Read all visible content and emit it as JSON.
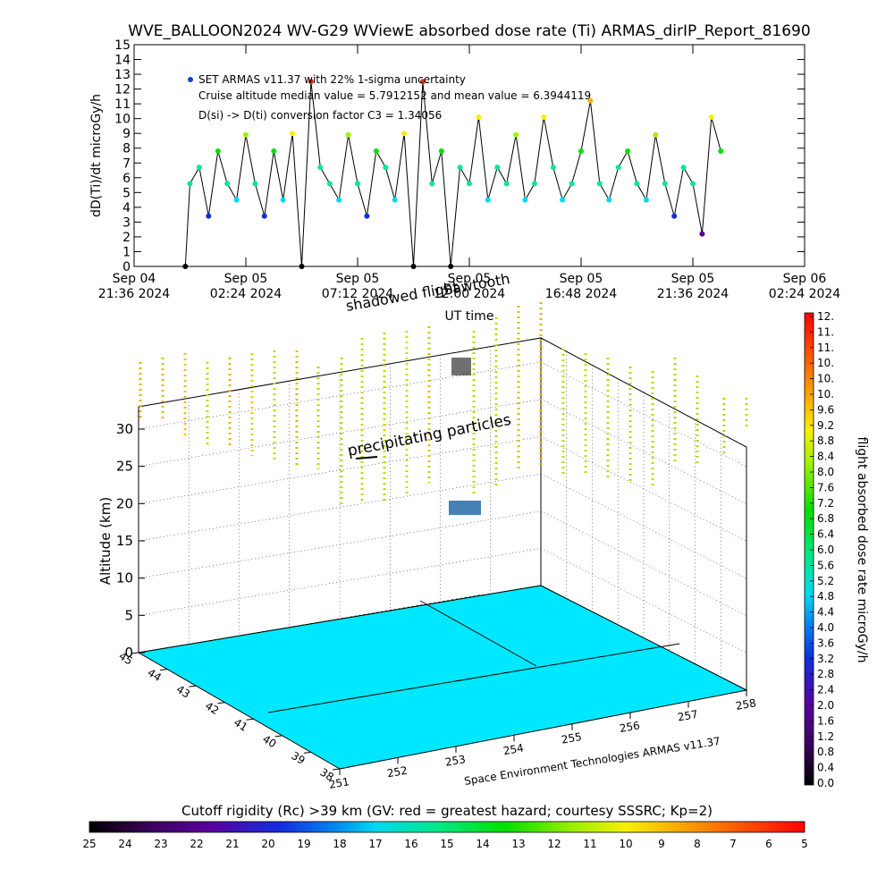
{
  "chart_data": [
    {
      "type": "line",
      "title": "WVE_BALLOON2024 WV-G29 WViewE absorbed dose rate (Ti) ARMAS_dirIP_Report_81690",
      "ylabel": "dD(Ti)/dt microGy/h",
      "xlabel": "UT time",
      "ylim": [
        0,
        15
      ],
      "yticks": [
        "0",
        "1",
        "2",
        "3",
        "4",
        "5",
        "6",
        "7",
        "8",
        "9",
        "10",
        "11",
        "12",
        "13",
        "14",
        "15"
      ],
      "xticks": [
        {
          "l1": "Sep 04",
          "l2": "21:36 2024"
        },
        {
          "l1": "Sep 05",
          "l2": "02:24 2024"
        },
        {
          "l1": "Sep 05",
          "l2": "07:12 2024"
        },
        {
          "l1": "Sep 05",
          "l2": "12:00 2024"
        },
        {
          "l1": "Sep 05",
          "l2": "16:48 2024"
        },
        {
          "l1": "Sep 05",
          "l2": "21:36 2024"
        },
        {
          "l1": "Sep 06",
          "l2": "02:24 2024"
        }
      ],
      "x_hours_range": [
        0,
        28.8
      ],
      "annotations": [
        "SET ARMAS v11.37 with 22% 1-sigma uncertainty",
        "Cruise altitude median value = 5.7912152 and mean value = 6.3944119",
        "D(si) -> D(ti) conversion factor C3 = 1.34056"
      ],
      "series": [
        {
          "x_hours": [
            2.2,
            2.4,
            2.8,
            3.2,
            3.6,
            4.0,
            4.4,
            4.8,
            5.2,
            5.6,
            6.0,
            6.4,
            6.8,
            7.2,
            7.6,
            8.0,
            8.4,
            8.8,
            9.2,
            9.6,
            10.0,
            10.4,
            10.8,
            11.2,
            11.6,
            12.0,
            12.4,
            12.8,
            13.2,
            13.6,
            14.0,
            14.4,
            14.8,
            15.2,
            15.6,
            16.0,
            16.4,
            16.8,
            17.2,
            17.6,
            18.0,
            18.4,
            18.8,
            19.2,
            19.6,
            20.0,
            20.4,
            20.8,
            21.2,
            21.6,
            22.0,
            22.4,
            22.8,
            23.2,
            23.6,
            24.0,
            24.4,
            24.8,
            25.2
          ],
          "values": [
            0,
            5.6,
            6.7,
            3.4,
            7.8,
            5.6,
            4.5,
            8.9,
            5.6,
            3.4,
            7.8,
            4.5,
            9.0,
            0,
            12.5,
            6.7,
            5.6,
            4.5,
            8.9,
            5.6,
            3.4,
            7.8,
            6.7,
            4.5,
            9.0,
            0,
            12.5,
            5.6,
            7.8,
            0,
            6.7,
            5.6,
            10.1,
            4.5,
            6.7,
            5.6,
            8.9,
            4.5,
            5.6,
            10.1,
            6.7,
            4.5,
            5.6,
            7.8,
            11.2,
            5.6,
            4.5,
            6.7,
            7.8,
            5.6,
            4.5,
            8.9,
            5.6,
            3.4,
            6.7,
            5.6,
            2.2,
            10.1,
            7.8
          ]
        }
      ]
    },
    {
      "type": "scatter",
      "title": "",
      "zlabel": "Altitude (km)",
      "zticks": [
        "0",
        "5",
        "10",
        "15",
        "20",
        "25",
        "30"
      ],
      "lat_ticks": [
        "45",
        "44",
        "43",
        "42",
        "41",
        "40",
        "39",
        "38"
      ],
      "lon_ticks": [
        "251",
        "252",
        "253",
        "254",
        "255",
        "256",
        "257",
        "258"
      ],
      "annotations": [
        "precipitating particles",
        "Sawtooth",
        "shadowed flight"
      ],
      "credit": "Space Environment Technologies ARMAS v11.37",
      "colorbar": {
        "label": "flight absorbed dose rate microGy/h",
        "ticks": [
          "0.0",
          "0.4",
          "0.8",
          "1.2",
          "1.6",
          "2.0",
          "2.4",
          "2.8",
          "3.2",
          "3.6",
          "4.0",
          "4.4",
          "4.8",
          "5.2",
          "5.6",
          "6.0",
          "6.4",
          "6.8",
          "7.2",
          "7.6",
          "8.0",
          "8.4",
          "8.8",
          "9.2",
          "9.6",
          "10.",
          "10.",
          "10.",
          "11.",
          "11.",
          "12."
        ],
        "range": [
          0,
          12
        ]
      }
    },
    {
      "type": "heatmap",
      "title": "Cutoff rigidity (Rc) >39 km (GV: red = greatest hazard; courtesy SSSRC; Kp=2)",
      "colorbar_ticks": [
        "25",
        "24",
        "23",
        "22",
        "21",
        "20",
        "19",
        "18",
        "17",
        "16",
        "15",
        "14",
        "13",
        "12",
        "11",
        "10",
        "9",
        "8",
        "7",
        "6",
        "5"
      ]
    }
  ]
}
